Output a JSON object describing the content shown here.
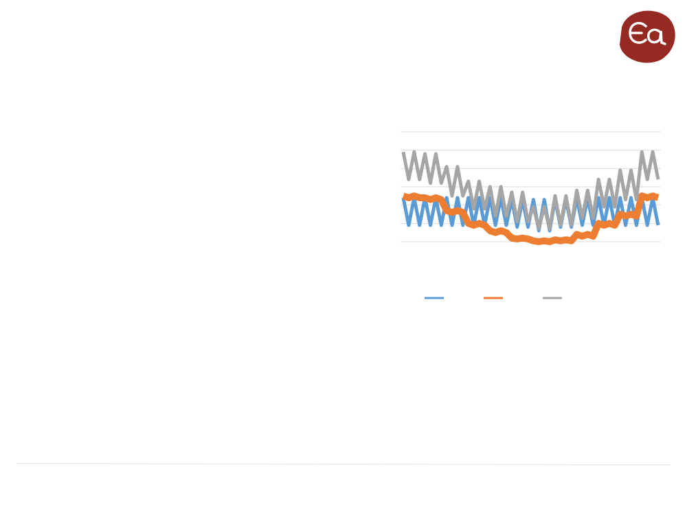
{
  "chart_data": {
    "type": "line",
    "x": [
      0,
      1,
      2,
      3,
      4,
      5,
      6,
      7,
      8,
      9,
      10,
      11,
      12,
      13,
      14,
      15,
      16,
      17,
      18,
      19,
      20,
      21,
      22,
      23,
      24,
      25,
      26,
      27,
      28,
      29,
      30,
      31,
      32,
      33,
      34,
      35,
      36,
      37,
      38,
      39,
      40,
      41,
      42,
      43,
      44,
      45,
      46,
      47
    ],
    "xlim": [
      0,
      47
    ],
    "ylim": [
      0,
      6
    ],
    "yticks": [
      0,
      1,
      2,
      3,
      4,
      5,
      6
    ],
    "grid": true,
    "legend": "bottom",
    "series": [
      {
        "color": "#5b9bd5",
        "values": [
          2.4,
          0.9,
          2.4,
          0.9,
          2.4,
          0.9,
          2.4,
          0.9,
          2.4,
          0.9,
          2.4,
          0.9,
          2.4,
          0.9,
          2.4,
          0.9,
          2.4,
          0.9,
          2.4,
          0.9,
          2.3,
          0.8,
          2.3,
          0.8,
          2.3,
          0.6,
          2.3,
          0.6,
          2.3,
          0.8,
          2.3,
          0.8,
          2.4,
          0.9,
          2.4,
          0.9,
          2.4,
          0.9,
          2.4,
          0.9,
          2.4,
          0.9,
          2.4,
          0.9,
          2.4,
          0.9,
          2.4,
          0.9
        ]
      },
      {
        "color": "#ed7d31",
        "values": [
          2.5,
          2.4,
          2.5,
          2.4,
          2.4,
          2.3,
          2.4,
          2.3,
          1.7,
          1.6,
          1.7,
          1.6,
          1.0,
          0.9,
          1.0,
          0.9,
          0.6,
          0.5,
          0.6,
          0.5,
          0.2,
          0.15,
          0.2,
          0.15,
          0.05,
          0.0,
          0.05,
          0.0,
          0.1,
          0.05,
          0.1,
          0.05,
          0.4,
          0.3,
          0.4,
          0.3,
          1.0,
          0.9,
          1.0,
          0.9,
          1.5,
          1.4,
          1.5,
          1.4,
          2.5,
          2.4,
          2.5,
          2.4
        ]
      },
      {
        "color": "#a5a5a5",
        "values": [
          4.9,
          3.4,
          4.9,
          3.4,
          4.8,
          3.2,
          4.8,
          3.2,
          4.1,
          2.5,
          4.1,
          2.5,
          3.3,
          1.8,
          3.3,
          1.8,
          3.0,
          1.4,
          3.0,
          1.4,
          2.7,
          1.1,
          2.7,
          1.1,
          1.9,
          0.7,
          1.9,
          0.7,
          2.5,
          0.9,
          2.5,
          0.9,
          2.8,
          1.3,
          2.8,
          1.3,
          3.4,
          1.9,
          3.4,
          1.9,
          3.9,
          2.3,
          3.9,
          2.3,
          4.9,
          3.4,
          4.9,
          3.4
        ]
      }
    ]
  }
}
